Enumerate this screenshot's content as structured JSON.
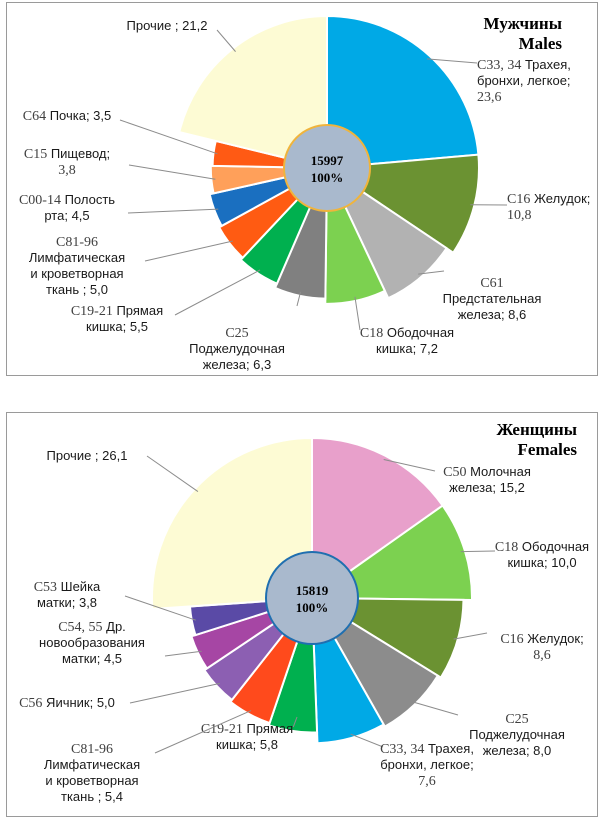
{
  "chart_data": [
    {
      "type": "pie",
      "title": "Мужчины",
      "subtitle": "Males",
      "total_label": "15997",
      "total_percent_label": "100%",
      "colors": {
        "center_fill": "#a9b9cd",
        "center_stroke": "#f0b43c"
      },
      "slices": [
        {
          "code": "C33, 34",
          "name": "Трахея, бронхи, легкое",
          "value": 23.6,
          "color": "#00a9e6",
          "label_lines": [
            {
              "code": "C33, 34",
              "text": " Трахея,"
            },
            {
              "text": "бронхи, легкое;"
            },
            {
              "num": "23,6"
            }
          ]
        },
        {
          "code": "C16",
          "name": "Желудок",
          "value": 10.8,
          "color": "#6b9232",
          "label_lines": [
            {
              "code": "C16",
              "text": " Желудок;"
            },
            {
              "num": "10,8"
            }
          ]
        },
        {
          "code": "C61",
          "name": "Предстательная железа",
          "value": 8.6,
          "color": "#b2b2b2",
          "label_lines": [
            {
              "code": "C61"
            },
            {
              "text": "Предстательная"
            },
            {
              "text": "железа; 8,6"
            }
          ]
        },
        {
          "code": "C18",
          "name": "Ободочная кишка",
          "value": 7.2,
          "color": "#7cd150",
          "label_lines": [
            {
              "code": "C18",
              "text": " Ободочная"
            },
            {
              "text": "кишка; 7,2"
            }
          ]
        },
        {
          "code": "C25",
          "name": "Поджелудочная железа",
          "value": 6.3,
          "color": "#808080",
          "label_lines": [
            {
              "code": "C25"
            },
            {
              "text": "Поджелудочная"
            },
            {
              "text": "железа; 6,3"
            }
          ]
        },
        {
          "code": "C19-21",
          "name": "Прямая кишка",
          "value": 5.5,
          "color": "#00b04f",
          "label_lines": [
            {
              "code": "C19-21",
              "text": " Прямая"
            },
            {
              "text": "кишка; 5,5"
            }
          ]
        },
        {
          "code": "C81-96",
          "name": "Лимфатическая и кроветворная ткань",
          "value": 5.0,
          "color": "#ff5b12",
          "label_lines": [
            {
              "code": "C81-96"
            },
            {
              "text": "Лимфатическая"
            },
            {
              "text": "и кроветворная"
            },
            {
              "text": "ткань ; 5,0"
            }
          ]
        },
        {
          "code": "C00-14",
          "name": "Полость рта",
          "value": 4.5,
          "color": "#1a6fc0",
          "label_lines": [
            {
              "code": "C00-14",
              "text": " Полость"
            },
            {
              "text": "рта; 4,5"
            }
          ]
        },
        {
          "code": "C15",
          "name": "Пищевод",
          "value": 3.8,
          "color": "#ffa05a",
          "label_lines": [
            {
              "code": "C15",
              "text": " Пищевод;"
            },
            {
              "num": "3,8"
            }
          ]
        },
        {
          "code": "C64",
          "name": "Почка",
          "value": 3.5,
          "color": "#ff5a14",
          "label_lines": [
            {
              "code": "C64",
              "text": " Почка; 3,5"
            }
          ]
        },
        {
          "code": "",
          "name": "Прочие",
          "value": 21.2,
          "color": "#fdfbd4",
          "label_lines": [
            {
              "text": "Прочие ; 21,2"
            }
          ]
        }
      ]
    },
    {
      "type": "pie",
      "title": "Женщины",
      "subtitle": "Females",
      "total_label": "15819",
      "total_percent_label": "100%",
      "colors": {
        "center_fill": "#a9b9cd",
        "center_stroke": "#1f6fb0"
      },
      "slices": [
        {
          "code": "C50",
          "name": "Молочная железа",
          "value": 15.2,
          "color": "#e8a0cb",
          "label_lines": [
            {
              "code": "C50",
              "text": " Молочная"
            },
            {
              "text": "железа; 15,2"
            }
          ]
        },
        {
          "code": "C18",
          "name": "Ободочная кишка",
          "value": 10.0,
          "color": "#7cd150",
          "label_lines": [
            {
              "code": "C18",
              "text": " Ободочная"
            },
            {
              "text": "кишка; 10,0"
            }
          ]
        },
        {
          "code": "C16",
          "name": "Желудок",
          "value": 8.6,
          "color": "#6b9232",
          "label_lines": [
            {
              "code": "C16",
              "text": " Желудок;"
            },
            {
              "num": "8,6"
            }
          ]
        },
        {
          "code": "C25",
          "name": "Поджелудочная железа",
          "value": 8.0,
          "color": "#8c8c8c",
          "label_lines": [
            {
              "code": "C25"
            },
            {
              "text": "Поджелудочная"
            },
            {
              "text": "железа; 8,0"
            }
          ]
        },
        {
          "code": "C33, 34",
          "name": "Трахея, бронхи, легкое",
          "value": 7.6,
          "color": "#00a9e6",
          "label_lines": [
            {
              "code": "C33, 34",
              "text": " Трахея,"
            },
            {
              "text": "бронхи, легкое;"
            },
            {
              "num": "7,6"
            }
          ]
        },
        {
          "code": "C19-21",
          "name": "Прямая кишка",
          "value": 5.8,
          "color": "#00b04f",
          "label_lines": [
            {
              "code": "C19-21",
              "text": " Прямая"
            },
            {
              "text": "кишка; 5,8"
            }
          ]
        },
        {
          "code": "C81-96",
          "name": "Лимфатическая и кроветворная ткань",
          "value": 5.4,
          "color": "#ff4a1c",
          "label_lines": [
            {
              "code": "C81-96"
            },
            {
              "text": "Лимфатическая"
            },
            {
              "text": "и кроветворная"
            },
            {
              "text": "ткань ; 5,4"
            }
          ]
        },
        {
          "code": "C56",
          "name": "Яичник",
          "value": 5.0,
          "color": "#8c5fb2",
          "label_lines": [
            {
              "code": "C56",
              "text": " Яичник; 5,0"
            }
          ]
        },
        {
          "code": "C54, 55",
          "name": "Др. новообразования матки",
          "value": 4.5,
          "color": "#a646a4",
          "label_lines": [
            {
              "code": "C54, 55",
              "text": " Др."
            },
            {
              "text": "новообразования"
            },
            {
              "text": "матки; 4,5"
            }
          ]
        },
        {
          "code": "C53",
          "name": "Шейка матки",
          "value": 3.8,
          "color": "#5a4aa6",
          "label_lines": [
            {
              "code": "C53",
              "text": " Шейка"
            },
            {
              "text": "матки; 3,8"
            }
          ]
        },
        {
          "code": "",
          "name": "Прочие",
          "value": 26.1,
          "color": "#fdfbd4",
          "label_lines": [
            {
              "text": "Прочие ; 26,1"
            }
          ]
        }
      ]
    }
  ]
}
